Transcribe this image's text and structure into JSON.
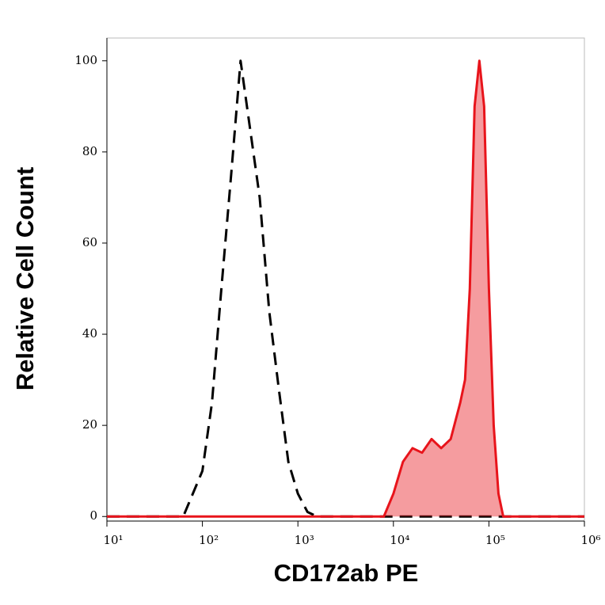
{
  "chart_data": {
    "type": "histogram-overlay",
    "x_label": "CD172ab PE",
    "y_label": "Relative Cell Count",
    "xscale": "log",
    "xlim": [
      10,
      1000000
    ],
    "xticks": [
      {
        "value": 10,
        "label": "10¹"
      },
      {
        "value": 100,
        "label": "10²"
      },
      {
        "value": 1000,
        "label": "10³"
      },
      {
        "value": 10000,
        "label": "10⁴"
      },
      {
        "value": 100000,
        "label": "10⁵"
      },
      {
        "value": 1000000,
        "label": "10⁶"
      }
    ],
    "ylim": [
      -1,
      105
    ],
    "yticks": [
      0,
      20,
      40,
      60,
      80,
      100
    ],
    "series": [
      {
        "color": "#000000",
        "dashed": true,
        "fill": false,
        "x": [
          10,
          63,
          100,
          126,
          158,
          200,
          251,
          316,
          398,
          501,
          631,
          794,
          1000,
          1259,
          1585,
          1000000
        ],
        "values": [
          0,
          0,
          10,
          25,
          50,
          75,
          100,
          85,
          70,
          45,
          28,
          12,
          5,
          1,
          0,
          0
        ]
      },
      {
        "color": "#e8141b",
        "dashed": false,
        "fill": true,
        "x": [
          10,
          7943,
          10000,
          12589,
          15849,
          19953,
          25119,
          31623,
          39811,
          50119,
          56234,
          63096,
          70795,
          79433,
          89125,
          100000,
          112202,
          125893,
          141254,
          1000000
        ],
        "values": [
          0,
          0,
          5,
          12,
          15,
          14,
          17,
          15,
          17,
          25,
          30,
          50,
          90,
          100,
          90,
          50,
          20,
          5,
          0,
          0
        ]
      }
    ]
  }
}
